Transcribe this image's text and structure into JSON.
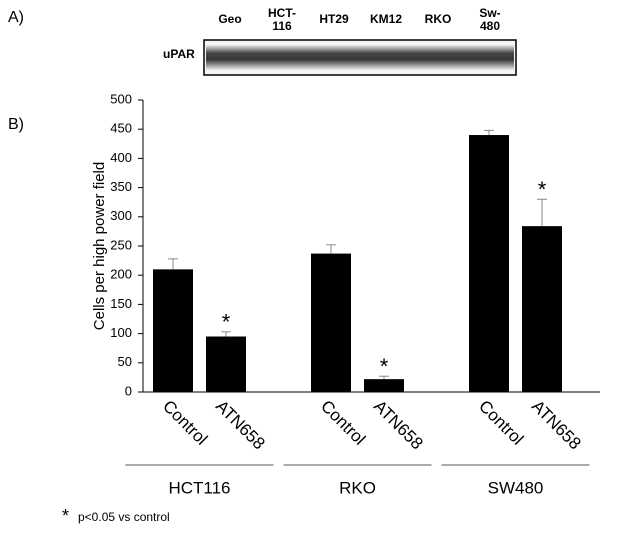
{
  "panel_a": {
    "label": "A)",
    "row_label": "uPAR",
    "lanes": [
      [
        "Geo"
      ],
      [
        "HCT-",
        "116"
      ],
      [
        "HT29"
      ],
      [
        "KM12"
      ],
      [
        "RKO"
      ],
      [
        "Sw-",
        "480"
      ]
    ]
  },
  "chart_data": {
    "type": "bar",
    "panel_label": "B)",
    "ylabel": "Cells per high power field",
    "groups": [
      "HCT116",
      "RKO",
      "SW480"
    ],
    "categories": [
      "Control",
      "ATN658",
      "Control",
      "ATN658",
      "Control",
      "ATN658"
    ],
    "values": [
      210,
      95,
      237,
      22,
      440,
      284
    ],
    "errors": [
      18,
      8,
      15,
      5,
      8,
      46
    ],
    "value_annotations": [
      null,
      "*",
      null,
      "*",
      null,
      "*"
    ],
    "color": "#000000",
    "ylim": [
      0,
      500
    ],
    "yticks": [
      0,
      50,
      100,
      150,
      200,
      250,
      300,
      350,
      400,
      450,
      500
    ]
  },
  "footnote": {
    "symbol": "*",
    "text": "p<0.05 vs control"
  }
}
